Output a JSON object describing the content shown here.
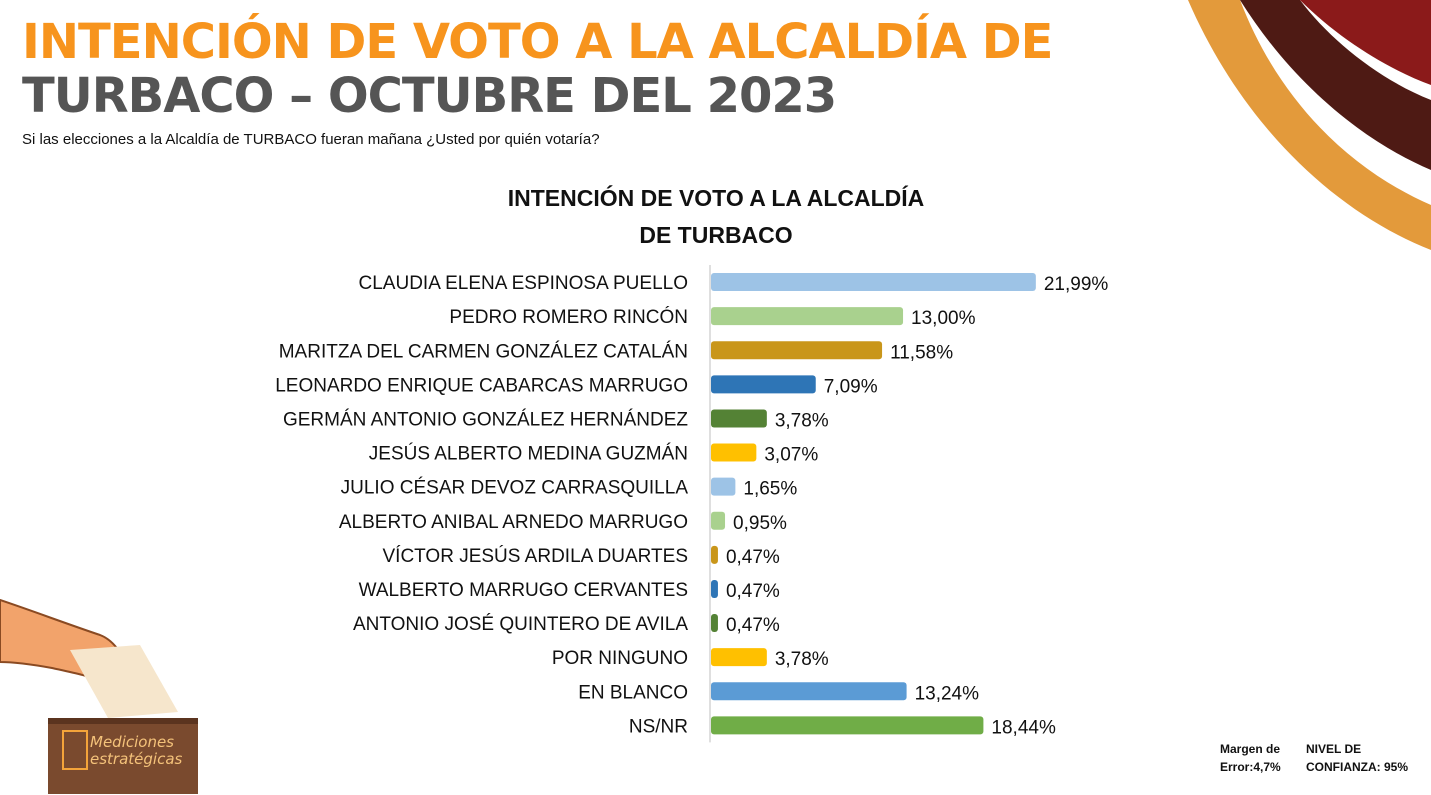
{
  "header": {
    "title_line1": "INTENCIÓN DE VOTO A LA ALCALDÍA DE",
    "title_line2": "TURBACO – OCTUBRE DEL 2023",
    "subtitle": "Si las elecciones a la  Alcaldía de TURBACO fueran mañana ¿Usted por quién votaría?"
  },
  "chart_data": {
    "type": "bar",
    "orientation": "horizontal",
    "title_line1": "INTENCIÓN DE VOTO A LA ALCALDÍA",
    "title_line2": "DE TURBACO",
    "categories": [
      "CLAUDIA ELENA ESPINOSA PUELLO",
      "PEDRO ROMERO RINCÓN",
      "MARITZA DEL CARMEN GONZÁLEZ CATALÁN",
      "LEONARDO ENRIQUE CABARCAS MARRUGO",
      "GERMÁN ANTONIO GONZÁLEZ HERNÁNDEZ",
      "JESÚS ALBERTO MEDINA GUZMÁN",
      "JULIO CÉSAR DEVOZ CARRASQUILLA",
      "ALBERTO ANIBAL ARNEDO MARRUGO",
      "VÍCTOR JESÚS ARDILA DUARTES",
      "WALBERTO MARRUGO CERVANTES",
      "ANTONIO JOSÉ QUINTERO DE AVILA",
      "POR NINGUNO",
      "EN BLANCO",
      "NS/NR"
    ],
    "values": [
      21.99,
      13.0,
      11.58,
      7.09,
      3.78,
      3.07,
      1.65,
      0.95,
      0.47,
      0.47,
      0.47,
      3.78,
      13.24,
      18.44
    ],
    "labels": [
      "21,99%",
      "13,00%",
      "11,58%",
      "7,09%",
      "3,78%",
      "3,07%",
      "1,65%",
      "0,95%",
      "0,47%",
      "0,47%",
      "0,47%",
      "3,78%",
      "13,24%",
      "18,44%"
    ],
    "colors": [
      "#9DC3E6",
      "#A9D18E",
      "#C9961A",
      "#2E75B6",
      "#548235",
      "#FFC000",
      "#9DC3E6",
      "#A9D18E",
      "#C9961A",
      "#2E75B6",
      "#548235",
      "#FFC000",
      "#5B9BD5",
      "#70AD47"
    ],
    "xlim": [
      0,
      22
    ],
    "grid": false,
    "legend": "none"
  },
  "footer": {
    "margin_line1": "Margen de",
    "margin_line2": "Error:4,7%",
    "confidence_line1": "NIVEL DE",
    "confidence_line2": "CONFIANZA: 95%"
  },
  "logo": {
    "line1": "Mediciones",
    "line2": "estratégicas"
  }
}
